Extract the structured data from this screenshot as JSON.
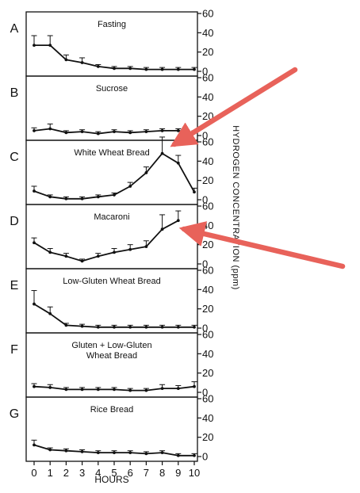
{
  "chart_data": {
    "type": "line",
    "xlabel": "HOURS",
    "ylabel": "HYDROGEN CONCENTRATION  (ppm)",
    "x": [
      0,
      1,
      2,
      3,
      4,
      5,
      6,
      7,
      8,
      9,
      10
    ],
    "x_ticks": [
      "0",
      "1",
      "2",
      "3",
      "4",
      "5",
      "6",
      "7",
      "8",
      "9",
      "10"
    ],
    "ylim": [
      0,
      60
    ],
    "y_ticks": [
      "0",
      "20",
      "40",
      "60"
    ],
    "grid": false,
    "panels": [
      {
        "label": "A",
        "title": [
          "Fasting"
        ],
        "values": [
          27,
          27,
          12,
          9,
          5,
          3,
          3,
          2,
          2,
          2,
          2
        ],
        "err": [
          10,
          10,
          5,
          5,
          2,
          2,
          2,
          2,
          2,
          2,
          2
        ]
      },
      {
        "label": "B",
        "title": [
          "Sucrose"
        ],
        "values": [
          5,
          7,
          3,
          4,
          2,
          4,
          3,
          4,
          5,
          5,
          3
        ],
        "err": [
          3,
          5,
          2,
          2,
          2,
          2,
          2,
          2,
          2,
          2,
          2
        ]
      },
      {
        "label": "C",
        "title": [
          "White Wheat Bread"
        ],
        "values": [
          9,
          3,
          1,
          1,
          3,
          5,
          14,
          28,
          48,
          38,
          8
        ],
        "err": [
          5,
          2,
          2,
          2,
          2,
          2,
          4,
          6,
          17,
          8,
          4
        ]
      },
      {
        "label": "D",
        "title": [
          "Macaroni"
        ],
        "values": [
          22,
          12,
          8,
          3,
          8,
          12,
          15,
          18,
          36,
          45,
          null
        ],
        "err": [
          5,
          4,
          3,
          2,
          3,
          4,
          5,
          6,
          15,
          10,
          null
        ]
      },
      {
        "label": "E",
        "title": [
          "Low-Gluten Wheat Bread"
        ],
        "values": [
          25,
          15,
          3,
          2,
          1,
          1,
          1,
          1,
          1,
          1,
          1
        ],
        "err": [
          14,
          7,
          2,
          2,
          2,
          2,
          2,
          2,
          2,
          2,
          2
        ]
      },
      {
        "label": "F",
        "title": [
          "Gluten + Low-Gluten",
          "Wheat Bread"
        ],
        "values": [
          6,
          5,
          3,
          3,
          3,
          3,
          2,
          2,
          4,
          4,
          6
        ],
        "err": [
          3,
          3,
          2,
          2,
          2,
          2,
          2,
          2,
          4,
          3,
          5
        ]
      },
      {
        "label": "G",
        "title": [
          "Rice Bread"
        ],
        "values": [
          12,
          7,
          6,
          5,
          4,
          4,
          4,
          3,
          4,
          1,
          1
        ],
        "err": [
          5,
          2,
          2,
          2,
          2,
          2,
          2,
          2,
          2,
          2,
          2
        ]
      }
    ],
    "annotations": [
      {
        "type": "arrow",
        "points_to": "C",
        "color": "#e8625a"
      },
      {
        "type": "arrow",
        "points_to": "D",
        "color": "#e8625a"
      }
    ]
  }
}
